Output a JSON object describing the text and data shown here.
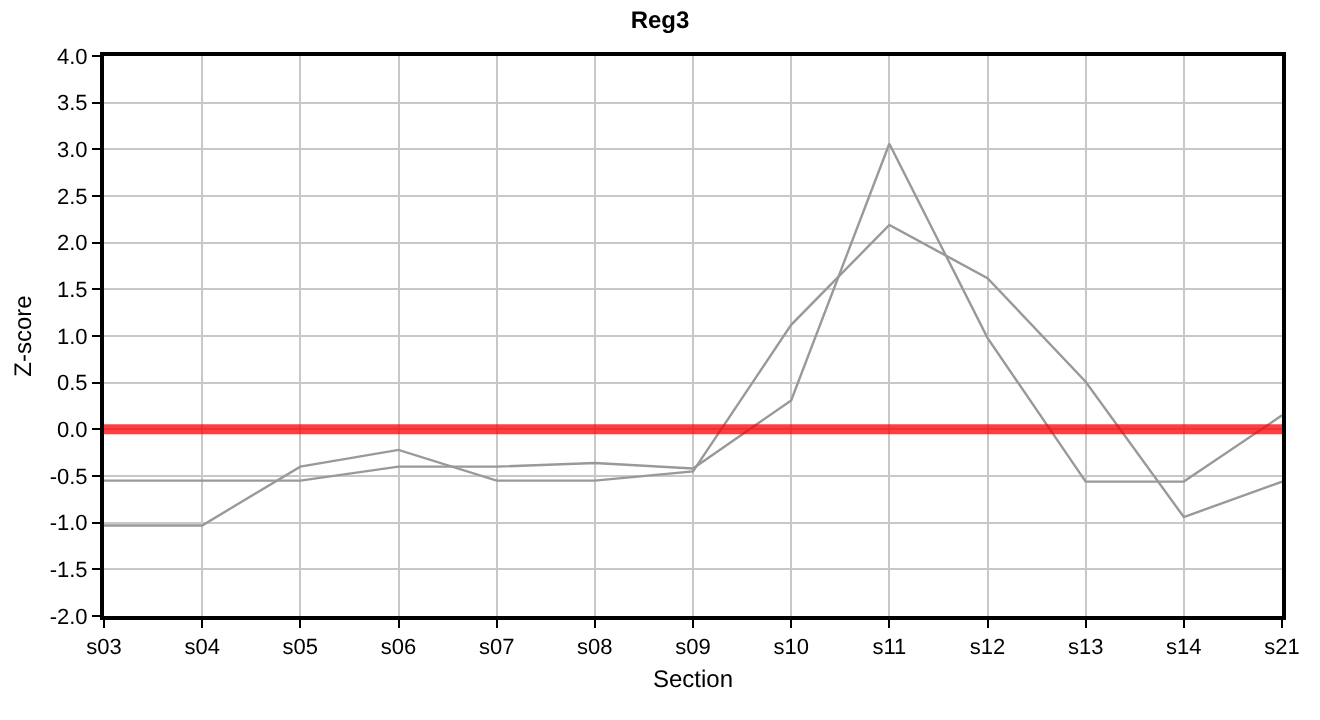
{
  "chart_data": {
    "type": "line",
    "title": "Reg3",
    "xlabel": "Section",
    "ylabel": "Z-score",
    "categories": [
      "s03",
      "s04",
      "s05",
      "s06",
      "s07",
      "s08",
      "s09",
      "s10",
      "s11",
      "s12",
      "s13",
      "s14",
      "s21"
    ],
    "series": [
      {
        "color": "#999999",
        "values": [
          -0.55,
          -0.55,
          -0.55,
          -0.4,
          -0.4,
          -0.36,
          -0.42,
          0.31,
          3.06,
          0.98,
          -0.56,
          -0.56,
          0.15
        ]
      },
      {
        "color": "#999999",
        "values": [
          -1.03,
          -1.03,
          -0.4,
          -0.22,
          -0.55,
          -0.55,
          -0.45,
          1.12,
          2.19,
          1.62,
          0.51,
          -0.94,
          -0.56
        ]
      }
    ],
    "ylim": [
      -2,
      4
    ],
    "yticks": [
      {
        "value": -2,
        "label": "-2.0"
      },
      {
        "value": -1.5,
        "label": "-1.5"
      },
      {
        "value": -1,
        "label": "-1.0"
      },
      {
        "value": -0.5,
        "label": "-0.5"
      },
      {
        "value": 0,
        "label": "0.0"
      },
      {
        "value": 0.5,
        "label": "0.5"
      },
      {
        "value": 1,
        "label": "1.0"
      },
      {
        "value": 1.5,
        "label": "1.5"
      },
      {
        "value": 2,
        "label": "2.0"
      },
      {
        "value": 2.5,
        "label": "2.5"
      },
      {
        "value": 3,
        "label": "3.0"
      },
      {
        "value": 3.5,
        "label": "3.5"
      },
      {
        "value": 4,
        "label": "4.0"
      }
    ],
    "ref_lines": [
      {
        "axis": "y",
        "value": 0,
        "color": "#ff0000"
      }
    ],
    "grid": true,
    "marker": "none",
    "line_style": "solid"
  }
}
